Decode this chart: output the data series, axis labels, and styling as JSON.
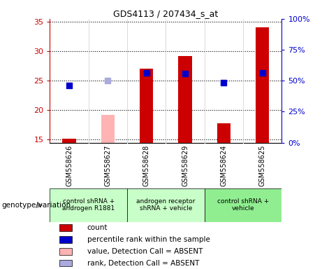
{
  "title": "GDS4113 / 207434_s_at",
  "samples": [
    "GSM558626",
    "GSM558627",
    "GSM558628",
    "GSM558629",
    "GSM558624",
    "GSM558625"
  ],
  "bar_values": [
    15.2,
    null,
    27.0,
    29.2,
    17.8,
    34.0
  ],
  "bar_absent_values": [
    null,
    19.2,
    null,
    null,
    null,
    null
  ],
  "blue_dot_values": [
    24.2,
    null,
    26.3,
    26.2,
    24.7,
    26.3
  ],
  "blue_absent_dot_values": [
    null,
    25.0,
    null,
    null,
    null,
    null
  ],
  "bar_color": "#cc0000",
  "bar_absent_color": "#ffb3b3",
  "dot_color": "#0000cc",
  "dot_absent_color": "#aaaadd",
  "ylim_left": [
    14.5,
    35.5
  ],
  "ylim_right": [
    0,
    100
  ],
  "yticks_left": [
    15,
    20,
    25,
    30,
    35
  ],
  "yticks_right": [
    0,
    25,
    50,
    75,
    100
  ],
  "ytick_labels_right": [
    "0%",
    "25%",
    "50%",
    "75%",
    "100%"
  ],
  "groups": [
    {
      "label": "control shRNA +\nandrogen R1881",
      "color": "#c8ffc8",
      "span": [
        0,
        2
      ]
    },
    {
      "label": "androgen receptor\nshRNA + vehicle",
      "color": "#c8ffc8",
      "span": [
        2,
        4
      ]
    },
    {
      "label": "control shRNA +\nvehicle",
      "color": "#90ee90",
      "span": [
        4,
        6
      ]
    }
  ],
  "group_colors": [
    "#c8ffc8",
    "#c8ffc8",
    "#90ee90"
  ],
  "sample_bg_color": "#d3d3d3",
  "legend_items": [
    {
      "color": "#cc0000",
      "label": "count"
    },
    {
      "color": "#0000cc",
      "label": "percentile rank within the sample"
    },
    {
      "color": "#ffb3b3",
      "label": "value, Detection Call = ABSENT"
    },
    {
      "color": "#aaaadd",
      "label": "rank, Detection Call = ABSENT"
    }
  ],
  "bar_width": 0.35,
  "dot_size": 40,
  "background_color": "#ffffff",
  "plot_bg_color": "#ffffff"
}
